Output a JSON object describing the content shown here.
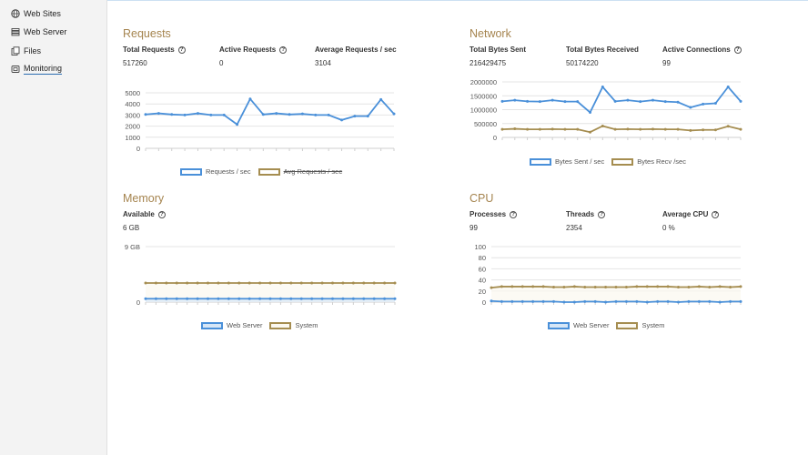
{
  "sidebar": {
    "items": [
      {
        "label": "Web Sites",
        "icon": "globe-icon"
      },
      {
        "label": "Web Server",
        "icon": "server-icon"
      },
      {
        "label": "Files",
        "icon": "files-icon"
      },
      {
        "label": "Monitoring",
        "icon": "monitoring-icon",
        "active": true
      }
    ]
  },
  "colors": {
    "primary": "#4a90d9",
    "secondary": "#a58d50",
    "heading": "#a5844f"
  },
  "panels": {
    "requests": {
      "title": "Requests",
      "metrics": [
        {
          "label": "Total Requests",
          "value": "517260",
          "help": true
        },
        {
          "label": "Active Requests",
          "value": "0",
          "help": true
        },
        {
          "label": "Average Requests / sec",
          "value": "3104",
          "help": false
        }
      ],
      "legend": [
        "Requests / sec",
        "Avg Requests / sec"
      ]
    },
    "network": {
      "title": "Network",
      "metrics": [
        {
          "label": "Total Bytes Sent",
          "value": "216429475",
          "help": false
        },
        {
          "label": "Total Bytes Received",
          "value": "50174220",
          "help": false
        },
        {
          "label": "Active Connections",
          "value": "99",
          "help": true
        }
      ],
      "legend": [
        "Bytes Sent / sec",
        "Bytes Recv /sec"
      ]
    },
    "memory": {
      "title": "Memory",
      "metrics": [
        {
          "label": "Available",
          "value": "6 GB",
          "help": true
        }
      ],
      "legend": [
        "Web Server",
        "System"
      ]
    },
    "cpu": {
      "title": "CPU",
      "metrics": [
        {
          "label": "Processes",
          "value": "99",
          "help": true
        },
        {
          "label": "Threads",
          "value": "2354",
          "help": true
        },
        {
          "label": "Average CPU",
          "value": "0 %",
          "help": true
        }
      ],
      "legend": [
        "Web Server",
        "System"
      ]
    }
  },
  "chart_data": [
    {
      "id": "requests",
      "type": "line",
      "yticks": [
        "5000",
        "4000",
        "3000",
        "2000",
        "1000",
        "0"
      ],
      "ylim": [
        0,
        5000
      ],
      "series": [
        {
          "name": "Requests / sec",
          "values": [
            3050,
            3150,
            3050,
            3000,
            3150,
            3000,
            3000,
            2150,
            4450,
            3050,
            3150,
            3050,
            3100,
            3000,
            3000,
            2550,
            2900,
            2900,
            4400,
            3100
          ]
        },
        {
          "name": "Avg Requests / sec",
          "values": [
            3100,
            3100,
            3100,
            3100,
            3100,
            3100,
            3100,
            3100,
            3100,
            3100,
            3100,
            3100,
            3100,
            3100,
            3100,
            3100,
            3100,
            3100,
            3100,
            3100
          ],
          "hidden": true
        }
      ]
    },
    {
      "id": "network",
      "type": "line",
      "yticks": [
        "2000000",
        "1500000",
        "1000000",
        "500000",
        "0"
      ],
      "ylim": [
        0,
        2000000
      ],
      "series": [
        {
          "name": "Bytes Sent / sec",
          "values": [
            1300000,
            1340000,
            1300000,
            1290000,
            1340000,
            1290000,
            1290000,
            900000,
            1820000,
            1300000,
            1340000,
            1290000,
            1340000,
            1290000,
            1270000,
            1080000,
            1200000,
            1230000,
            1820000,
            1300000
          ]
        },
        {
          "name": "Bytes Recv /sec",
          "values": [
            290000,
            310000,
            290000,
            290000,
            300000,
            290000,
            290000,
            190000,
            410000,
            290000,
            300000,
            290000,
            300000,
            290000,
            290000,
            250000,
            270000,
            270000,
            400000,
            290000
          ]
        }
      ]
    },
    {
      "id": "memory",
      "type": "area",
      "yticks": [
        "9 GB",
        "0"
      ],
      "ylim": [
        0,
        9
      ],
      "series": [
        {
          "name": "Web Server",
          "values": [
            0.55,
            0.55,
            0.55,
            0.55,
            0.55,
            0.55,
            0.55,
            0.55,
            0.55,
            0.55,
            0.55,
            0.55,
            0.55,
            0.55,
            0.55,
            0.55,
            0.55,
            0.55,
            0.55,
            0.55,
            0.55,
            0.55,
            0.55,
            0.55,
            0.55
          ]
        },
        {
          "name": "System",
          "values": [
            3.1,
            3.1,
            3.1,
            3.1,
            3.1,
            3.1,
            3.1,
            3.1,
            3.1,
            3.1,
            3.1,
            3.1,
            3.1,
            3.1,
            3.1,
            3.1,
            3.1,
            3.1,
            3.1,
            3.1,
            3.1,
            3.1,
            3.1,
            3.1,
            3.1
          ]
        }
      ]
    },
    {
      "id": "cpu",
      "type": "area",
      "yticks": [
        "100",
        "80",
        "60",
        "40",
        "20",
        "0"
      ],
      "ylim": [
        0,
        100
      ],
      "series": [
        {
          "name": "Web Server",
          "values": [
            2,
            1,
            1,
            1,
            1,
            1,
            1,
            0,
            0,
            1,
            1,
            0,
            1,
            1,
            1,
            0,
            1,
            1,
            0,
            1,
            1,
            1,
            0,
            1,
            1
          ]
        },
        {
          "name": "System",
          "values": [
            26,
            28,
            28,
            28,
            28,
            28,
            27,
            27,
            28,
            27,
            27,
            27,
            27,
            27,
            28,
            28,
            28,
            28,
            27,
            27,
            28,
            27,
            28,
            27,
            28
          ]
        }
      ]
    }
  ]
}
